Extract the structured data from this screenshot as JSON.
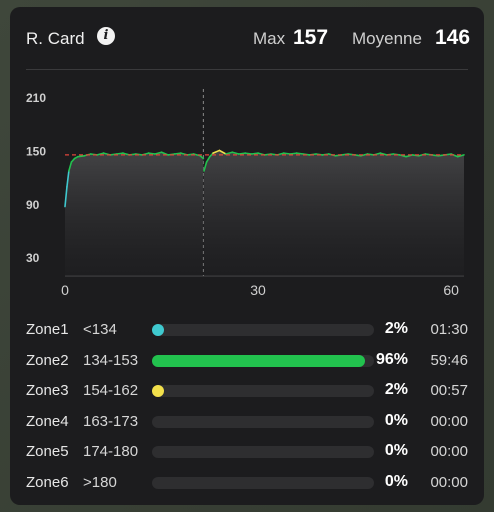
{
  "header": {
    "title": "R. Card",
    "max_label": "Max",
    "max_value": "157",
    "avg_label": "Moyenne",
    "avg_value": "146"
  },
  "chart_data": {
    "type": "line",
    "x_ticks": [
      "0",
      "30",
      "60"
    ],
    "y_ticks": [
      "210",
      "150",
      "90",
      "30"
    ],
    "xlim": [
      0,
      62
    ],
    "ylim": [
      10,
      220
    ],
    "reference_line": 146,
    "marker_x": 21.5,
    "series": [
      {
        "values": [
          [
            0,
            88
          ],
          [
            0.3,
            110
          ],
          [
            0.6,
            128
          ],
          [
            1,
            138
          ],
          [
            1.5,
            142
          ],
          [
            2,
            144
          ],
          [
            3,
            145
          ],
          [
            4,
            147
          ],
          [
            5,
            146
          ],
          [
            6,
            148
          ],
          [
            7,
            146
          ],
          [
            8,
            147
          ],
          [
            9,
            148
          ],
          [
            10,
            146
          ],
          [
            11,
            147
          ],
          [
            12,
            146
          ],
          [
            13,
            148
          ],
          [
            14,
            147
          ],
          [
            15,
            149
          ],
          [
            16,
            146
          ],
          [
            17,
            147
          ],
          [
            18,
            148
          ],
          [
            19,
            146
          ],
          [
            20,
            147
          ],
          [
            21,
            145
          ],
          [
            21.5,
            142
          ],
          [
            21.6,
            128
          ],
          [
            22,
            138
          ],
          [
            22.5,
            144
          ],
          [
            23,
            148
          ],
          [
            24,
            151
          ],
          [
            25,
            147
          ],
          [
            26,
            149
          ],
          [
            27,
            147
          ],
          [
            28,
            148
          ],
          [
            29,
            147
          ],
          [
            30,
            148
          ],
          [
            31,
            146
          ],
          [
            32,
            147
          ],
          [
            33,
            146
          ],
          [
            34,
            148
          ],
          [
            35,
            147
          ],
          [
            36,
            148
          ],
          [
            37,
            147
          ],
          [
            38,
            146
          ],
          [
            39,
            147
          ],
          [
            40,
            146
          ],
          [
            41,
            147
          ],
          [
            42,
            145
          ],
          [
            43,
            146
          ],
          [
            44,
            147
          ],
          [
            45,
            146
          ],
          [
            46,
            145
          ],
          [
            47,
            147
          ],
          [
            48,
            146
          ],
          [
            49,
            148
          ],
          [
            50,
            146
          ],
          [
            51,
            147
          ],
          [
            52,
            146
          ],
          [
            53,
            144
          ],
          [
            54,
            146
          ],
          [
            55,
            145
          ],
          [
            56,
            147
          ],
          [
            57,
            146
          ],
          [
            58,
            145
          ],
          [
            59,
            146
          ],
          [
            60,
            147
          ],
          [
            61,
            144
          ],
          [
            62,
            146
          ]
        ]
      }
    ]
  },
  "zones": [
    {
      "name": "Zone1",
      "range": "<134",
      "fraction": 0.02,
      "pct": "2%",
      "time": "01:30",
      "color": "#3fc9cf"
    },
    {
      "name": "Zone2",
      "range": "134-153",
      "fraction": 0.96,
      "pct": "96%",
      "time": "59:46",
      "color": "#22c24e"
    },
    {
      "name": "Zone3",
      "range": "154-162",
      "fraction": 0.02,
      "pct": "2%",
      "time": "00:57",
      "color": "#f2e04b"
    },
    {
      "name": "Zone4",
      "range": "163-173",
      "fraction": 0,
      "pct": "0%",
      "time": "00:00",
      "color": "#e08a2c"
    },
    {
      "name": "Zone5",
      "range": "174-180",
      "fraction": 0,
      "pct": "0%",
      "time": "00:00",
      "color": "#e0452c"
    },
    {
      "name": "Zone6",
      "range": ">180",
      "fraction": 0,
      "pct": "0%",
      "time": "00:00",
      "color": "#c02c7a"
    }
  ]
}
